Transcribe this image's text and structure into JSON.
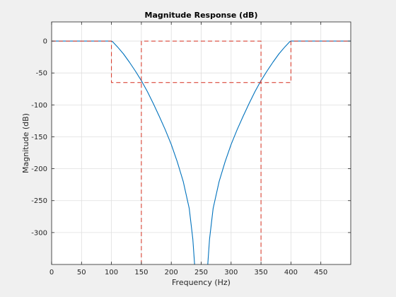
{
  "chart_data": {
    "type": "line",
    "title": "Magnitude Response (dB)",
    "xlabel": "Frequency (Hz)",
    "ylabel": "Magnitude (dB)",
    "xlim": [
      0,
      500
    ],
    "ylim": [
      -350,
      30
    ],
    "grid": true,
    "x_ticks": [
      0,
      50,
      100,
      150,
      200,
      250,
      300,
      350,
      400,
      450
    ],
    "y_ticks": [
      0,
      -50,
      -100,
      -150,
      -200,
      -250,
      -300
    ],
    "colors": {
      "response": "#0072bd",
      "mask": "#d62f1f",
      "axes_bg": "#ffffff",
      "figure_bg": "#f0f0f0",
      "grid": "#dfdfdf",
      "axis": "#262626"
    },
    "series": [
      {
        "kind": "response",
        "segments": [
          {
            "x": [
              0,
              50,
              100,
              102,
              105,
              110,
              120,
              130,
              140,
              150,
              160,
              170,
              180,
              190,
              200,
              210,
              220,
              230,
              236,
              239
            ],
            "y": [
              0,
              0,
              0,
              -1,
              -4,
              -9,
              -20,
              -33,
              -47,
              -62,
              -79,
              -98,
              -118,
              -139,
              -162,
              -189,
              -220,
              -262,
              -310,
              -350
            ]
          },
          {
            "x": [
              261,
              264,
              270,
              280,
              290,
              300,
              310,
              320,
              330,
              340,
              350,
              360,
              370,
              380,
              390,
              395,
              398,
              400,
              450,
              500
            ],
            "y": [
              -350,
              -310,
              -262,
              -220,
              -189,
              -162,
              -139,
              -118,
              -98,
              -79,
              -62,
              -47,
              -33,
              -20,
              -9,
              -4,
              -1,
              0,
              0,
              0
            ]
          }
        ]
      },
      {
        "kind": "mask",
        "segments": [
          {
            "x": [
              0,
              100,
              100,
              400,
              400,
              500
            ],
            "y": [
              0,
              0,
              -65,
              -65,
              0,
              0
            ]
          },
          {
            "x": [
              150,
              150,
              350,
              350
            ],
            "y": [
              -350,
              0,
              0,
              -350
            ]
          }
        ]
      }
    ]
  }
}
